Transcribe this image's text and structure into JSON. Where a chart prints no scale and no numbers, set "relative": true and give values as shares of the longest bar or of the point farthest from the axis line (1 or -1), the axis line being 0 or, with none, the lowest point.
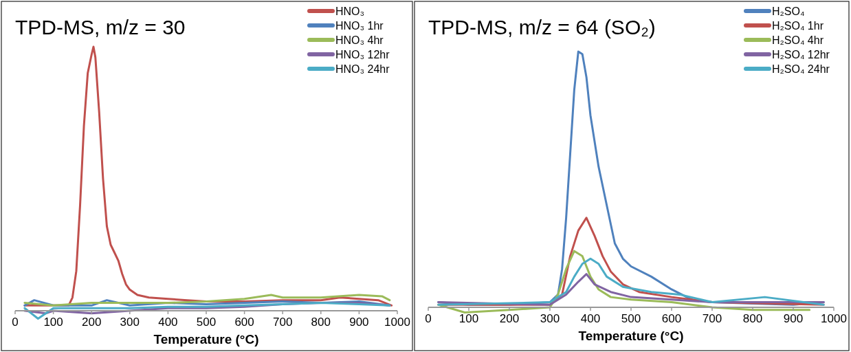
{
  "chart_data": [
    {
      "type": "line",
      "title": "TPD-MS, m/z = 30",
      "xlabel": "Temperature (°C)",
      "relative": true,
      "xlim": [
        0,
        1000
      ],
      "xticks": [
        0,
        100,
        200,
        300,
        400,
        500,
        600,
        700,
        800,
        900,
        1000
      ],
      "tick_labels": "x",
      "legend": "top right",
      "series": [
        {
          "name": "HNO₃",
          "color": "#c0504d",
          "x": [
            25,
            100,
            140,
            150,
            160,
            170,
            180,
            190,
            200,
            205,
            210,
            220,
            230,
            240,
            250,
            260,
            270,
            280,
            290,
            300,
            320,
            350,
            400,
            450,
            500,
            600,
            700,
            800,
            850,
            900,
            950,
            985
          ],
          "values": [
            0.02,
            0.02,
            0.02,
            0.05,
            0.15,
            0.4,
            0.7,
            0.9,
            0.97,
            1.0,
            0.96,
            0.75,
            0.5,
            0.32,
            0.25,
            0.22,
            0.19,
            0.14,
            0.1,
            0.08,
            0.06,
            0.05,
            0.045,
            0.04,
            0.035,
            0.035,
            0.04,
            0.04,
            0.05,
            0.045,
            0.04,
            0.02
          ]
        },
        {
          "name": "HNO₃ 1hr",
          "color": "#4f81bd",
          "x": [
            25,
            50,
            100,
            200,
            240,
            300,
            400,
            500,
            600,
            700,
            800,
            900,
            980
          ],
          "values": [
            0.02,
            0.04,
            0.02,
            0.02,
            0.04,
            0.02,
            0.03,
            0.025,
            0.03,
            0.035,
            0.03,
            0.035,
            0.02
          ]
        },
        {
          "name": "HNO₃ 4hr",
          "color": "#9bbb59",
          "x": [
            25,
            100,
            200,
            300,
            400,
            500,
            600,
            670,
            700,
            800,
            900,
            960,
            980
          ],
          "values": [
            0.03,
            0.02,
            0.03,
            0.03,
            0.03,
            0.035,
            0.045,
            0.06,
            0.05,
            0.05,
            0.06,
            0.055,
            0.04
          ]
        },
        {
          "name": "HNO₃ 12hr",
          "color": "#8064a2",
          "x": [
            25,
            80,
            100,
            200,
            300,
            400,
            500,
            600,
            700,
            800,
            900,
            980
          ],
          "values": [
            0.0,
            -0.01,
            0.0,
            -0.01,
            0.0,
            0.01,
            0.01,
            0.015,
            0.025,
            0.03,
            0.03,
            0.02
          ]
        },
        {
          "name": "HNO₃ 24hr",
          "color": "#4bacc6",
          "x": [
            25,
            60,
            100,
            200,
            300,
            400,
            500,
            600,
            700,
            800,
            900,
            980
          ],
          "values": [
            0.01,
            -0.03,
            0.01,
            0.01,
            0.01,
            0.015,
            0.015,
            0.02,
            0.025,
            0.03,
            0.025,
            0.02
          ]
        }
      ]
    },
    {
      "type": "line",
      "title": "TPD-MS, m/z = 64 (SO₂)",
      "xlabel": "Temperature (°C)",
      "relative": true,
      "xlim": [
        0,
        1000
      ],
      "xticks": [
        0,
        100,
        200,
        300,
        400,
        500,
        600,
        700,
        800,
        900,
        1000
      ],
      "tick_labels": "x",
      "legend": "top right",
      "series": [
        {
          "name": "H₂SO₄",
          "color": "#4f81bd",
          "x": [
            25,
            100,
            200,
            300,
            320,
            330,
            340,
            350,
            360,
            370,
            380,
            390,
            400,
            420,
            440,
            460,
            480,
            500,
            550,
            600,
            650,
            700,
            800,
            900,
            975
          ],
          "values": [
            0.02,
            0.01,
            0.01,
            0.02,
            0.05,
            0.15,
            0.35,
            0.6,
            0.85,
            1.0,
            0.99,
            0.9,
            0.75,
            0.55,
            0.4,
            0.25,
            0.19,
            0.16,
            0.12,
            0.07,
            0.03,
            0.02,
            0.015,
            0.01,
            0.02
          ]
        },
        {
          "name": "H₂SO₄ 1hr",
          "color": "#c0504d",
          "x": [
            25,
            100,
            200,
            300,
            330,
            350,
            370,
            390,
            410,
            430,
            450,
            480,
            520,
            600,
            700,
            975
          ],
          "values": [
            0.01,
            0.01,
            0.01,
            0.01,
            0.05,
            0.2,
            0.3,
            0.35,
            0.28,
            0.2,
            0.14,
            0.09,
            0.06,
            0.04,
            0.02,
            0.01
          ]
        },
        {
          "name": "H₂SO₄ 4hr",
          "color": "#9bbb59",
          "x": [
            25,
            90,
            200,
            300,
            320,
            340,
            360,
            380,
            400,
            420,
            450,
            500,
            600,
            700,
            800,
            940
          ],
          "values": [
            0.01,
            -0.02,
            -0.01,
            0.0,
            0.05,
            0.15,
            0.22,
            0.2,
            0.12,
            0.07,
            0.04,
            0.03,
            0.02,
            0.0,
            -0.01,
            -0.01
          ]
        },
        {
          "name": "H₂SO₄ 12hr",
          "color": "#8064a2",
          "x": [
            25,
            300,
            340,
            370,
            390,
            410,
            450,
            500,
            600,
            700,
            975
          ],
          "values": [
            0.02,
            0.01,
            0.05,
            0.1,
            0.13,
            0.09,
            0.06,
            0.04,
            0.03,
            0.02,
            0.02
          ]
        },
        {
          "name": "H₂SO₄ 24hr",
          "color": "#4bacc6",
          "x": [
            25,
            300,
            340,
            360,
            380,
            400,
            420,
            440,
            480,
            550,
            620,
            700,
            830,
            975
          ],
          "values": [
            0.01,
            0.02,
            0.06,
            0.12,
            0.17,
            0.19,
            0.17,
            0.12,
            0.08,
            0.06,
            0.05,
            0.02,
            0.04,
            0.01
          ]
        }
      ]
    }
  ]
}
